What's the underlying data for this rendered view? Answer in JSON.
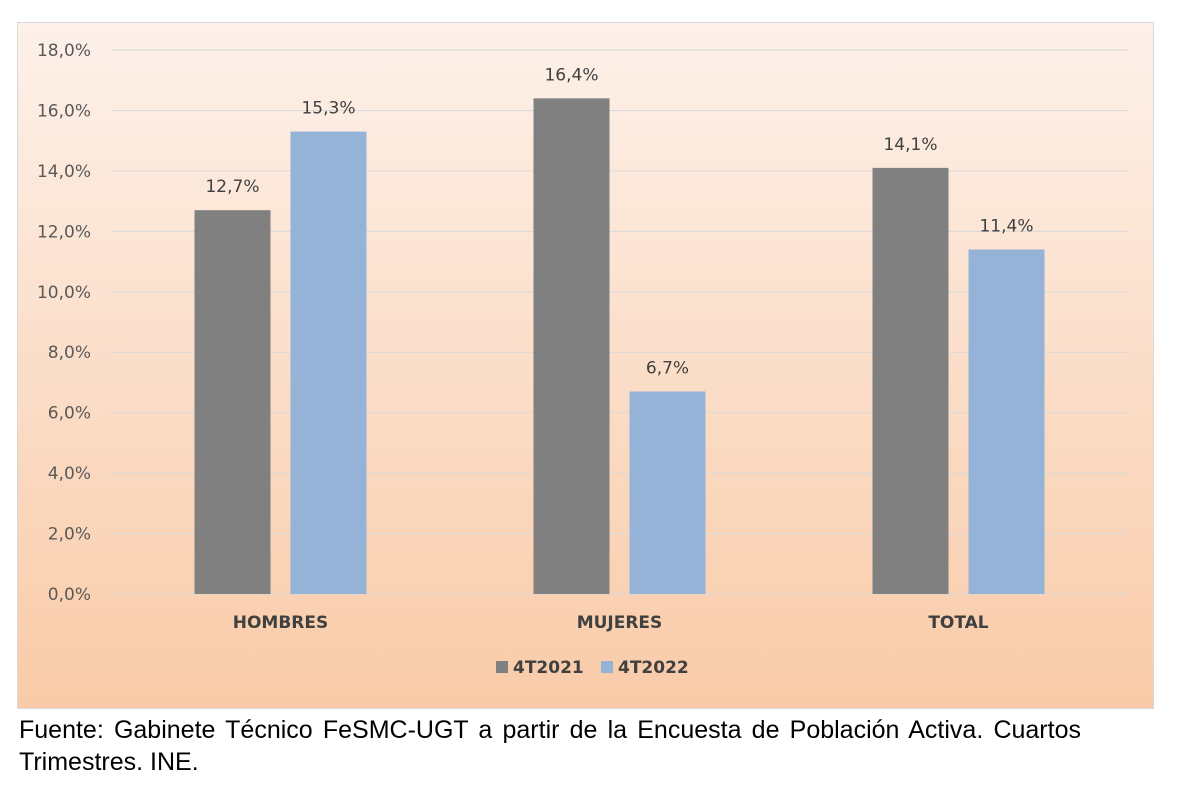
{
  "chart_data": {
    "type": "bar",
    "categories": [
      "HOMBRES",
      "MUJERES",
      "TOTAL"
    ],
    "series": [
      {
        "name": "4T2021",
        "values": [
          12.7,
          16.4,
          14.1
        ],
        "labels": [
          "12,7%",
          "16,4%",
          "14,1%"
        ],
        "color": "#808080"
      },
      {
        "name": "4T2022",
        "values": [
          15.3,
          6.7,
          11.4
        ],
        "labels": [
          "15,3%",
          "6,7%",
          "11,4%"
        ],
        "color": "#95b3d7"
      }
    ],
    "ylim": [
      0,
      18
    ],
    "yticks": [
      0,
      2,
      4,
      6,
      8,
      10,
      12,
      14,
      16,
      18
    ],
    "ytick_labels": [
      "0,0%",
      "2,0%",
      "4,0%",
      "6,0%",
      "8,0%",
      "10,0%",
      "12,0%",
      "14,0%",
      "16,0%",
      "18,0%"
    ],
    "grid": true,
    "legend_position": "bottom",
    "background": {
      "top": "#fdf1ea",
      "bottom": "#f9cba8"
    }
  },
  "source_note": "Fuente: Gabinete Técnico FeSMC-UGT a partir de la Encuesta de Población Activa. Cuartos Trimestres. INE."
}
